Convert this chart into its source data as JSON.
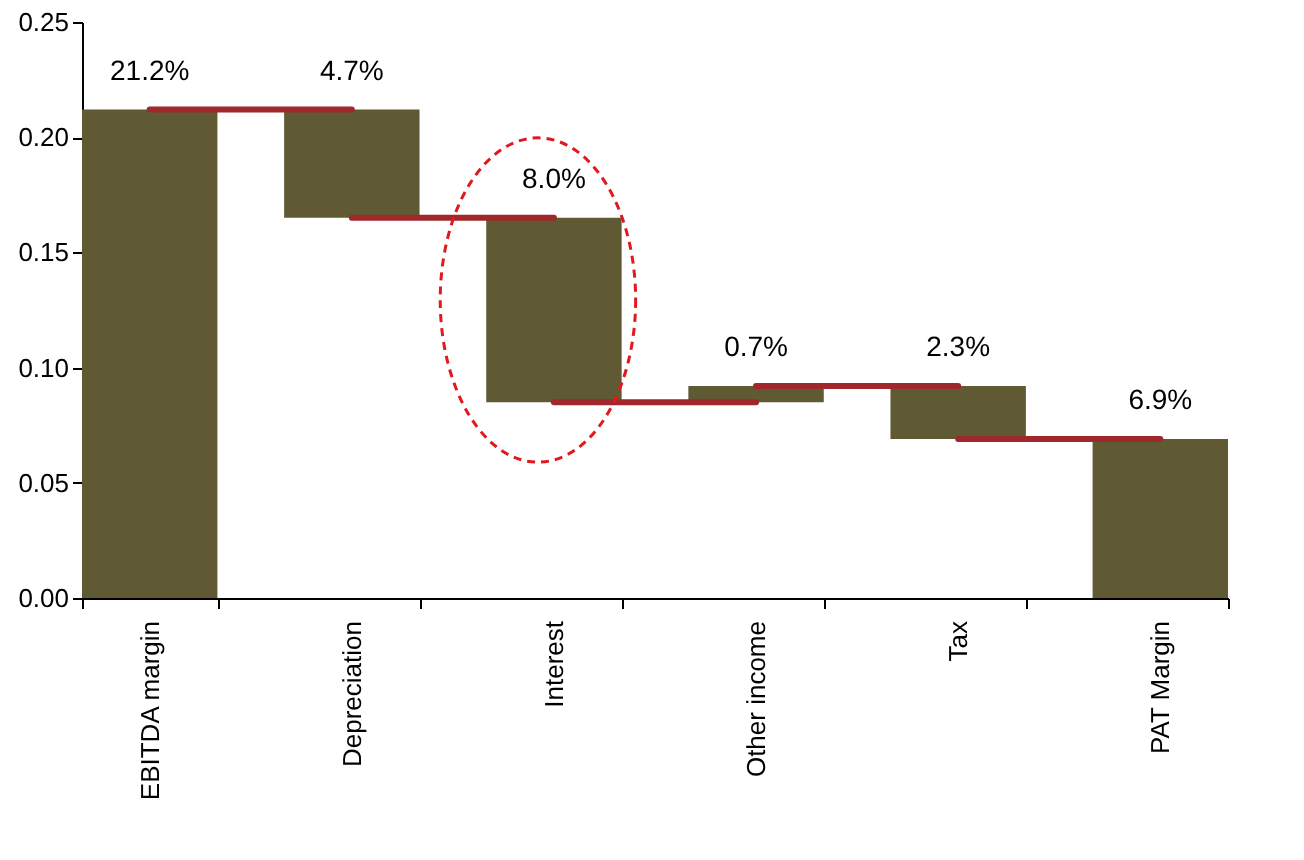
{
  "chart_data": {
    "type": "bar",
    "categories": [
      "EBITDA margin",
      "Depreciation",
      "Interest",
      "Other income",
      "Tax",
      "PAT Margin"
    ],
    "values": [
      0.212,
      0.047,
      0.08,
      0.007,
      0.023,
      0.069
    ],
    "base": [
      0,
      0.165,
      0.085,
      0.085,
      0.069,
      0
    ],
    "value_labels": [
      "21.2%",
      "4.7%",
      "8.0%",
      "0.7%",
      "2.3%",
      "6.9%"
    ],
    "color": "#5f5a33",
    "ylim": [
      0,
      0.25
    ],
    "yticks": [
      {
        "value": 0,
        "label": "0.00"
      },
      0.05,
      {
        "value": 0.1,
        "label": "0.10"
      },
      0.15,
      {
        "value": 0.2,
        "label": "0.20"
      },
      0.25
    ],
    "grid": false
  }
}
